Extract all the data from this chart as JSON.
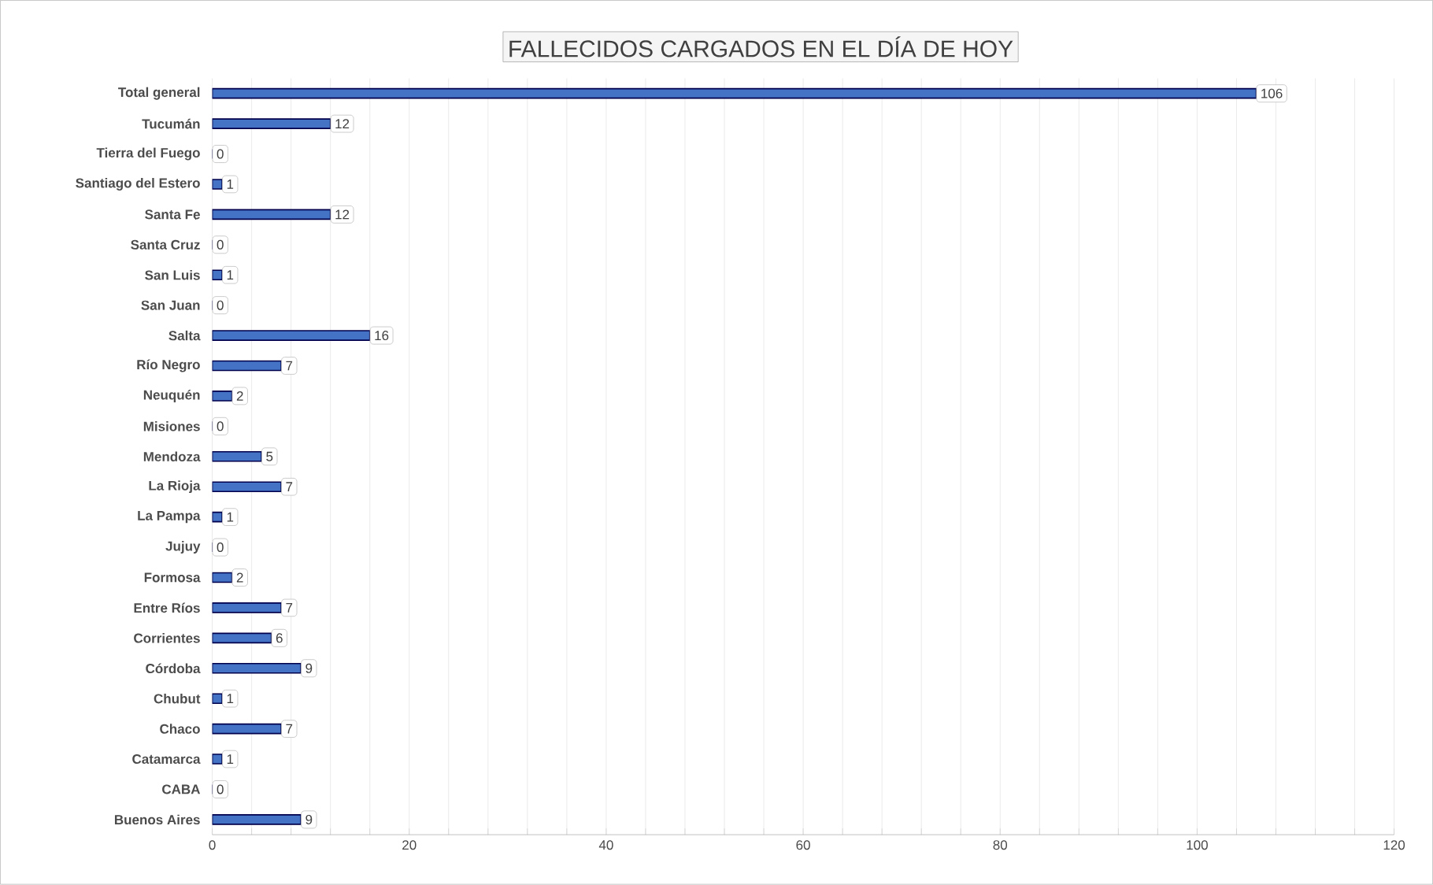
{
  "chart_data": {
    "type": "bar",
    "orientation": "horizontal",
    "title": "FALLECIDOS CARGADOS EN EL DÍA DE HOY",
    "categories": [
      "Total general",
      "Tucumán",
      "Tierra del Fuego",
      "Santiago del Estero",
      "Santa Fe",
      "Santa Cruz",
      "San Luis",
      "San Juan",
      "Salta",
      "Río Negro",
      "Neuquén",
      "Misiones",
      "Mendoza",
      "La Rioja",
      "La Pampa",
      "Jujuy",
      "Formosa",
      "Entre Ríos",
      "Corrientes",
      "Córdoba",
      "Chubut",
      "Chaco",
      "Catamarca",
      "CABA",
      "Buenos Aires"
    ],
    "values": [
      106,
      12,
      0,
      1,
      12,
      0,
      1,
      0,
      16,
      7,
      2,
      0,
      5,
      7,
      1,
      0,
      2,
      7,
      6,
      9,
      1,
      7,
      1,
      0,
      9
    ],
    "color": "#4472c4",
    "xlim": [
      0,
      120
    ],
    "xticks": [
      0,
      {
        "value": 4,
        "label": null
      },
      {
        "value": 8,
        "label": null
      },
      {
        "value": 12,
        "label": null
      },
      {
        "value": 16,
        "label": null
      },
      20,
      {
        "value": 24,
        "label": null
      },
      {
        "value": 28,
        "label": null
      },
      {
        "value": 32,
        "label": null
      },
      {
        "value": 36,
        "label": null
      },
      40,
      {
        "value": 44,
        "label": null
      },
      {
        "value": 48,
        "label": null
      },
      {
        "value": 52,
        "label": null
      },
      {
        "value": 56,
        "label": null
      },
      60,
      {
        "value": 64,
        "label": null
      },
      {
        "value": 68,
        "label": null
      },
      {
        "value": 72,
        "label": null
      },
      {
        "value": 76,
        "label": null
      },
      80,
      {
        "value": 84,
        "label": null
      },
      {
        "value": 88,
        "label": null
      },
      {
        "value": 92,
        "label": null
      },
      {
        "value": 96,
        "label": null
      },
      100,
      {
        "value": 104,
        "label": null
      },
      {
        "value": 108,
        "label": null
      },
      {
        "value": 112,
        "label": null
      },
      {
        "value": 116,
        "label": null
      },
      120
    ],
    "grid": "x",
    "data_labels": true
  }
}
